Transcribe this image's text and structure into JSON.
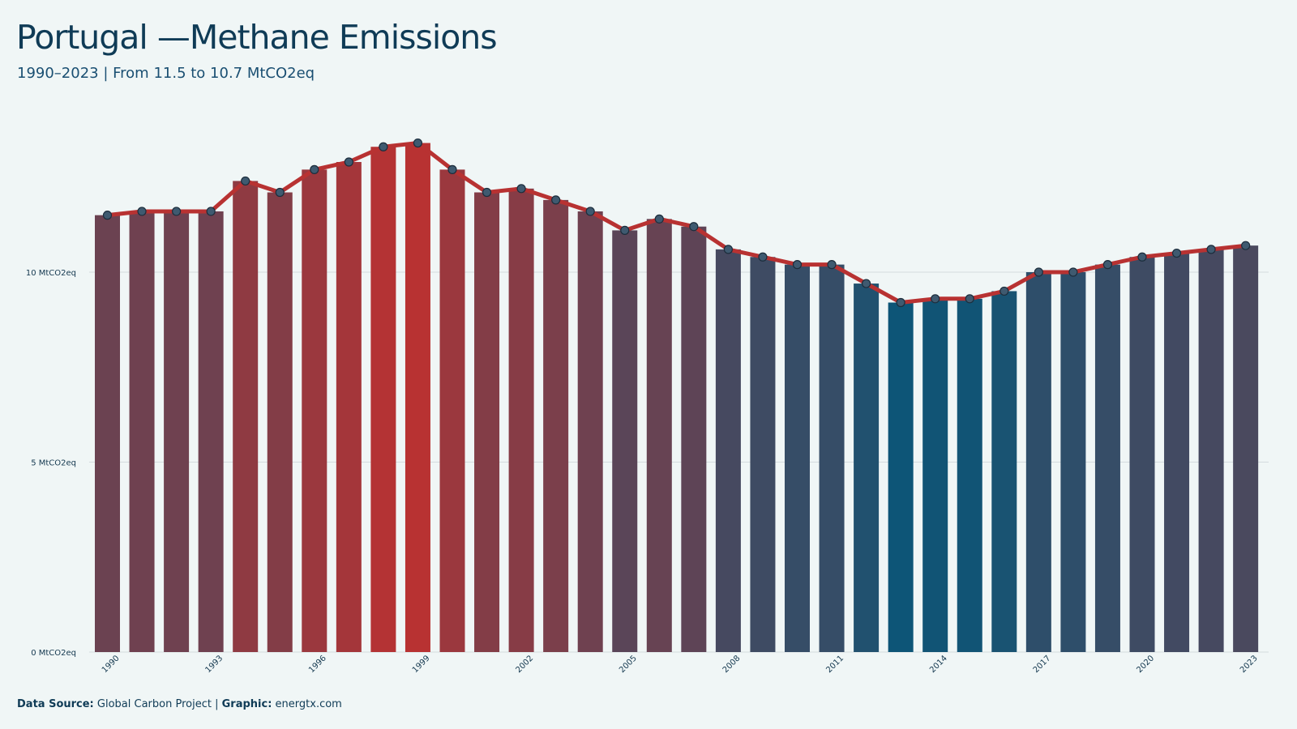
{
  "header": {
    "title": "Portugal —Methane Emissions",
    "subtitle": "1990–2023 | From 11.5 to 10.7 MtCO2eq"
  },
  "footer": {
    "source_label": "Data Source:",
    "source_value": "Global Carbon Project",
    "separator": "|",
    "graphic_label": "Graphic:",
    "graphic_value": "energtx.com"
  },
  "colors": {
    "background": "#f0f6f6",
    "high": "#b83232",
    "low": "#0d5577",
    "line": "#b83232",
    "marker_fill": "#3f5a70",
    "marker_stroke": "#1c2d3c",
    "grid": "#d4dcdf"
  },
  "chart_data": {
    "type": "bar",
    "title": "Portugal —Methane Emissions",
    "subtitle": "1990–2023 | From 11.5 to 10.7 MtCO2eq",
    "xlabel": "",
    "ylabel": "",
    "unit": "MtCO2eq",
    "ylim": [
      0,
      14
    ],
    "yticks": [
      0,
      5,
      10
    ],
    "ytick_labels": [
      "0 MtCO2eq",
      "5 MtCO2eq",
      "10 MtCO2eq"
    ],
    "xtick_labels": [
      "1990",
      "1993",
      "1996",
      "1999",
      "2002",
      "2005",
      "2008",
      "2011",
      "2014",
      "2017",
      "2020",
      "2023"
    ],
    "grid": true,
    "overlay": "line with point markers tracing bar tops",
    "color_encoding": "bars shaded from blue (low) to red (high) by value",
    "categories": [
      "1990",
      "1991",
      "1992",
      "1993",
      "1994",
      "1995",
      "1996",
      "1997",
      "1998",
      "1999",
      "2000",
      "2001",
      "2002",
      "2003",
      "2004",
      "2005",
      "2006",
      "2007",
      "2008",
      "2009",
      "2010",
      "2011",
      "2012",
      "2013",
      "2014",
      "2015",
      "2016",
      "2017",
      "2018",
      "2019",
      "2020",
      "2021",
      "2022",
      "2023"
    ],
    "values": [
      11.5,
      11.6,
      11.6,
      11.6,
      12.4,
      12.1,
      12.7,
      12.9,
      13.3,
      13.4,
      12.7,
      12.1,
      12.2,
      11.9,
      11.6,
      11.1,
      11.4,
      11.2,
      10.6,
      10.4,
      10.2,
      10.2,
      9.7,
      9.2,
      9.3,
      9.3,
      9.5,
      10.0,
      10.0,
      10.2,
      10.4,
      10.5,
      10.6,
      10.7
    ]
  }
}
